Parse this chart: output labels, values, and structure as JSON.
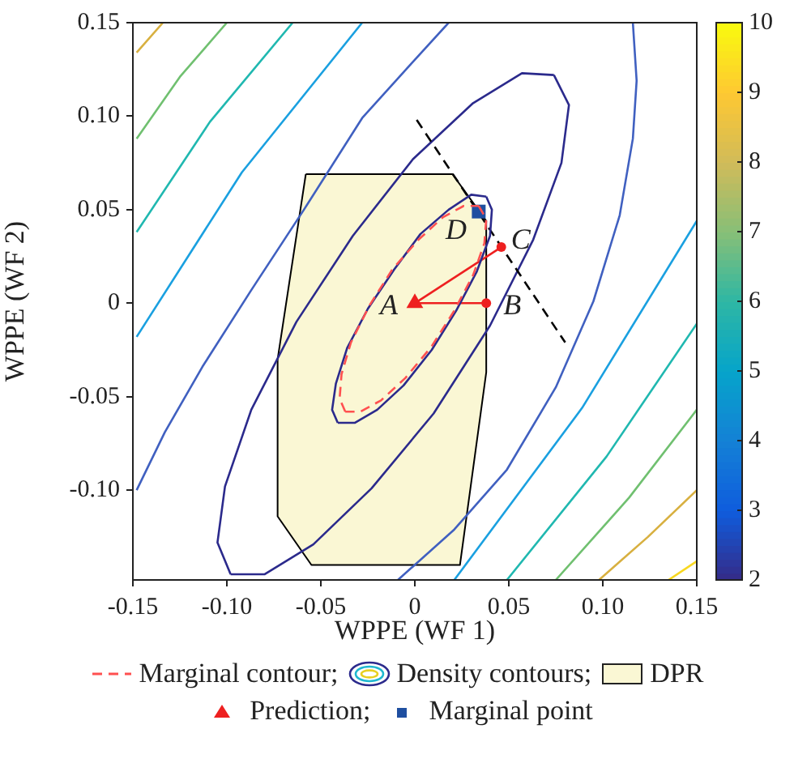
{
  "chart_data": {
    "type": "line",
    "xlabel": "WPPE (WF 1)",
    "ylabel": "WPPE (WF 2)",
    "xlim": [
      -0.15,
      0.15
    ],
    "ylim": [
      -0.148,
      0.15
    ],
    "xticks": [
      -0.15,
      {
        "value": -0.1,
        "label": "-0.10"
      },
      -0.05,
      0,
      0.05,
      {
        "value": 0.1,
        "label": "0.10"
      },
      0.15
    ],
    "yticks": [
      {
        "value": -0.1,
        "label": "-0.10"
      },
      -0.05,
      0,
      0.05,
      {
        "value": 0.1,
        "label": "0.10"
      },
      0.15
    ],
    "clim": [
      2,
      10
    ],
    "cticks": [
      2,
      3,
      4,
      5,
      6,
      7,
      8,
      9,
      10
    ],
    "grid": false,
    "legend": "bottom",
    "marker": "none",
    "line_style": "solid",
    "annotations": [
      {
        "text": "A",
        "x": 0,
        "y": 0
      },
      {
        "text": "B",
        "x": 0.038,
        "y": 0
      },
      {
        "text": "C",
        "x": 0.046,
        "y": 0.03
      },
      {
        "text": "D",
        "x": 0.034,
        "y": 0.049
      }
    ],
    "series": [
      {
        "name": "Marginal contour;",
        "line_style": "dashed",
        "color": "#ff5050",
        "x": [
          0.034,
          0.038,
          0.037,
          0.031,
          0.021,
          0.009,
          -0.005,
          -0.018,
          -0.029,
          -0.037,
          null,
          -0.037,
          -0.04,
          -0.039,
          -0.034,
          -0.024,
          -0.012,
          0.002,
          0.015,
          0.026,
          0.034
        ],
        "values": [
          0.052,
          0.045,
          0.032,
          0.015,
          -0.004,
          -0.023,
          -0.04,
          -0.052,
          -0.058,
          -0.058,
          null,
          -0.058,
          -0.051,
          -0.038,
          -0.021,
          -0.001,
          0.018,
          0.034,
          0.046,
          0.052,
          0.052
        ]
      },
      {
        "name": "Density contours;",
        "color": "#2b2a8c",
        "x": [
          0.038,
          0.041,
          0.04,
          0.033,
          0.022,
          0.009,
          -0.006,
          -0.02,
          -0.032,
          -0.041,
          null,
          -0.041,
          -0.044,
          -0.042,
          -0.036,
          -0.025,
          -0.011,
          0.003,
          0.018,
          0.03,
          0.038
        ],
        "values": [
          0.057,
          0.05,
          0.036,
          0.017,
          -0.004,
          -0.025,
          -0.044,
          -0.057,
          -0.064,
          -0.064,
          null,
          -0.064,
          -0.057,
          -0.043,
          -0.024,
          -0.003,
          0.018,
          0.037,
          0.05,
          0.058,
          0.057
        ]
      },
      {
        "name": "DPR",
        "type": "area",
        "color": "#faf7d4",
        "x": [
          -0.058,
          0.02,
          0.038,
          0.038,
          0.024,
          -0.055,
          -0.073,
          -0.073,
          -0.058
        ],
        "values": [
          0.069,
          0.069,
          0.044,
          -0.037,
          -0.14,
          -0.14,
          -0.114,
          -0.03,
          0.069
        ]
      },
      {
        "name": "Prediction;",
        "type": "scatter",
        "marker": "triangle",
        "color": "#ee2020",
        "x": [
          0
        ],
        "values": [
          0
        ]
      },
      {
        "name": "Marginal point",
        "type": "scatter",
        "marker": "square",
        "color": "#1f4fa0",
        "x": [
          0.034
        ],
        "values": [
          0.049
        ]
      },
      {
        "color": "#ee2020",
        "x": [
          0.038,
          0
        ],
        "values": [
          0,
          0
        ]
      },
      {
        "color": "#ee2020",
        "x": [
          0.046,
          0
        ],
        "values": [
          0.03,
          0
        ]
      },
      {
        "type": "scatter",
        "marker": "circle",
        "color": "#ee2020",
        "x": [
          0.038,
          0.046
        ],
        "values": [
          0,
          0.03
        ]
      },
      {
        "line_style": "dashed",
        "color": "#000000",
        "x": [
          0.001,
          0.08
        ],
        "values": [
          0.098,
          -0.021
        ]
      },
      {
        "color": "#2b2a8c",
        "x": [
          0.074,
          0.082,
          0.078,
          0.063,
          0.04,
          0.01,
          -0.023,
          -0.054,
          -0.08,
          -0.098,
          null,
          -0.098,
          -0.105,
          -0.101,
          -0.087,
          -0.063,
          -0.033,
          -0.001,
          0.031,
          0.057,
          0.074
        ],
        "values": [
          0.122,
          0.106,
          0.075,
          0.034,
          -0.012,
          -0.059,
          -0.099,
          -0.129,
          -0.145,
          -0.145,
          null,
          -0.145,
          -0.128,
          -0.098,
          -0.057,
          -0.01,
          0.036,
          0.077,
          0.107,
          0.123,
          0.122
        ]
      },
      {
        "color": "#4060c0",
        "x": [
          -0.148,
          -0.133,
          -0.113,
          -0.087,
          -0.059,
          -0.028,
          -0.002,
          0.018,
          null,
          0.116,
          0.118,
          0.116,
          0.109,
          0.095,
          0.075,
          0.049,
          0.021,
          -0.009
        ],
        "values": [
          -0.1,
          -0.069,
          -0.034,
          0.007,
          0.05,
          0.099,
          0.128,
          0.15,
          null,
          0.15,
          0.119,
          0.088,
          0.047,
          0.001,
          -0.045,
          -0.089,
          -0.121,
          -0.148
        ]
      },
      {
        "color": "#1aa0e0",
        "x": [
          -0.148,
          -0.092,
          -0.028,
          null,
          0.021,
          0.089,
          0.15
        ],
        "values": [
          -0.018,
          0.07,
          0.15,
          null,
          -0.148,
          -0.056,
          0.044
        ]
      },
      {
        "color": "#20b8b0",
        "x": [
          -0.148,
          -0.109,
          -0.065,
          null,
          0.049,
          0.102,
          0.15
        ],
        "values": [
          0.038,
          0.097,
          0.15,
          null,
          -0.148,
          -0.082,
          -0.011
        ]
      },
      {
        "color": "#70c070",
        "x": [
          -0.148,
          -0.125,
          -0.1,
          null,
          0.075,
          0.114,
          0.15
        ],
        "values": [
          0.088,
          0.121,
          0.15,
          null,
          -0.148,
          -0.104,
          -0.057
        ]
      },
      {
        "color": "#d8b040",
        "x": [
          -0.148,
          -0.134,
          null,
          0.098,
          0.124,
          0.15
        ],
        "values": [
          0.134,
          0.15,
          null,
          -0.148,
          -0.125,
          -0.1
        ]
      },
      {
        "color": "#f8d820",
        "x": [
          0.135,
          0.15
        ],
        "values": [
          -0.148,
          -0.138
        ]
      }
    ]
  }
}
